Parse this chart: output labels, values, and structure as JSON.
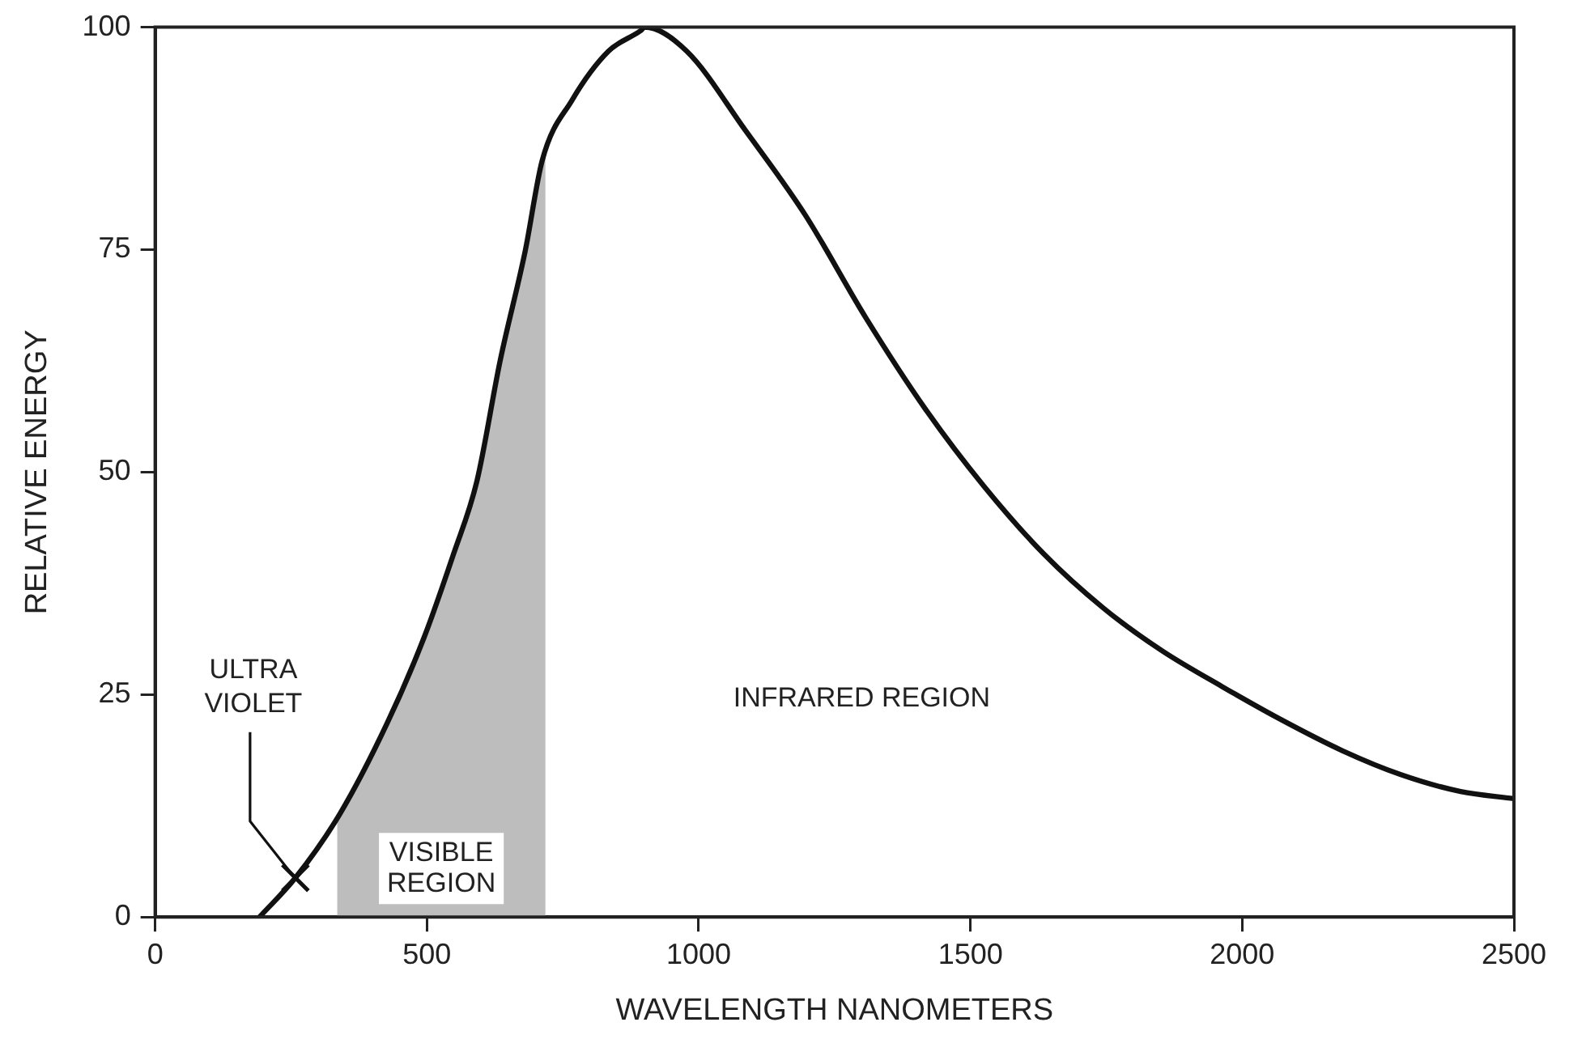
{
  "chart_data": {
    "type": "line",
    "xlabel": "WAVELENGTH NANOMETERS",
    "ylabel": "RELATIVE ENERGY",
    "xlim": [
      0,
      2500
    ],
    "xticks": [
      0,
      500,
      1000,
      1500,
      2000,
      2500
    ],
    "ylim": [
      0,
      100
    ],
    "yticks": [
      0,
      25,
      50,
      75,
      100
    ],
    "grid": false,
    "legend": false,
    "marker": "none",
    "line_style": "solid",
    "series": [
      {
        "color": "#111111",
        "x": [
          192,
          258,
          340,
          427,
          494,
          549,
          592,
          635,
          681,
          712,
          767,
          834,
          893,
          901,
          978,
          1086,
          1196,
          1307,
          1417,
          1525,
          1635,
          1745,
          1853,
          1963,
          2074,
          2184,
          2292,
          2402,
          2500
        ],
        "values": [
          0,
          4.4,
          11.6,
          21.8,
          31.3,
          40.8,
          49,
          62.6,
          74.9,
          85,
          91.8,
          97.3,
          99.6,
          100,
          97.3,
          88.4,
          78.9,
          67.4,
          57.1,
          48.4,
          40.8,
          34.7,
          29.9,
          25.9,
          22.1,
          18.7,
          16,
          14.1,
          13.3
        ]
      }
    ],
    "bands": [
      {
        "axis": "x",
        "from": 335,
        "to": 718,
        "label": "VISIBLE REGION",
        "color": "#bdbdbd"
      }
    ],
    "annotations": [
      {
        "text": "ULTRA VIOLET",
        "x": 258,
        "y": 4.4
      },
      "INFRARED REGION"
    ]
  }
}
